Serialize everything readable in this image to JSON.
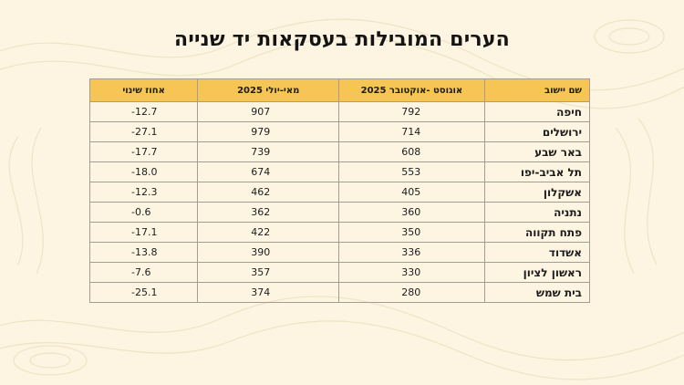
{
  "title": "הערים המובילות בעסקאות יד שנייה",
  "table": {
    "headers": {
      "city": "שם יישוב",
      "aug_oct": "אוגוסט -אוקטובר 2025",
      "may_jul": "מאי-יולי 2025",
      "change": "אחוז שינוי"
    },
    "rows": [
      {
        "city": "חיפה",
        "aug_oct": "792",
        "may_jul": "907",
        "change": "-12.7"
      },
      {
        "city": "ירושלים",
        "aug_oct": "714",
        "may_jul": "979",
        "change": "-27.1"
      },
      {
        "city": "באר שבע",
        "aug_oct": "608",
        "may_jul": "739",
        "change": "-17.7"
      },
      {
        "city": "תל אביב-יפו",
        "aug_oct": "553",
        "may_jul": "674",
        "change": "-18.0"
      },
      {
        "city": "אשקלון",
        "aug_oct": "405",
        "may_jul": "462",
        "change": "-12.3"
      },
      {
        "city": "נתניה",
        "aug_oct": "360",
        "may_jul": "362",
        "change": "-0.6"
      },
      {
        "city": "פתח תקווה",
        "aug_oct": "350",
        "may_jul": "422",
        "change": "-17.1"
      },
      {
        "city": "אשדוד",
        "aug_oct": "336",
        "may_jul": "390",
        "change": "-13.8"
      },
      {
        "city": "ראשון לציון",
        "aug_oct": "330",
        "may_jul": "357",
        "change": "-7.6"
      },
      {
        "city": "בית שמש",
        "aug_oct": "280",
        "may_jul": "374",
        "change": "-25.1"
      }
    ]
  },
  "colors": {
    "background": "#fdf5e2",
    "header_fill": "#f7c553",
    "border": "#a29d95",
    "text": "#141414"
  }
}
